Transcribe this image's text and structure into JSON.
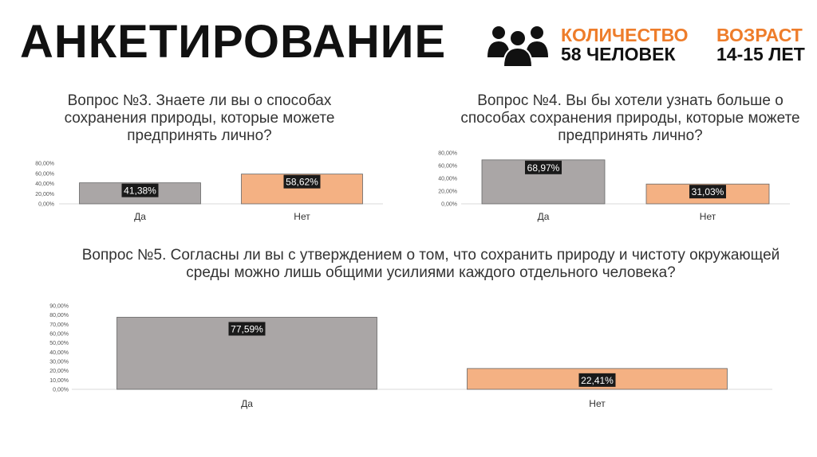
{
  "header": {
    "title": "АНКЕТИРОВАНИЕ",
    "count_label": "КОЛИЧЕСТВО",
    "count_value": "58 ЧЕЛОВЕК",
    "age_label": "ВОЗРАСТ",
    "age_value": "14-15 ЛЕТ",
    "icon": "people-group-icon"
  },
  "questions": [
    {
      "text": "Вопрос №3. Знаете ли вы о способах сохранения природы, которые можете предпринять лично?"
    },
    {
      "text": "Вопрос №4. Вы бы хотели узнать больше о способах сохранения природы, которые можете предпринять лично?"
    },
    {
      "text": "Вопрос №5. Согласны ли вы с утверждением о том, что сохранить природу и чистоту окружающей среды можно лишь общими усилиями каждого отдельного человека?"
    }
  ],
  "chart_data": [
    {
      "type": "bar",
      "categories": [
        "Да",
        "Нет"
      ],
      "values": [
        41.38,
        58.62
      ],
      "data_labels": [
        "41,38%",
        "58,62%"
      ],
      "ylim": [
        0,
        80
      ],
      "yticks": [
        "0,00%",
        "20,00%",
        "40,00%",
        "60,00%",
        "80,00%"
      ],
      "colors": [
        "#aaa6a6",
        "#f4b183"
      ]
    },
    {
      "type": "bar",
      "categories": [
        "Да",
        "Нет"
      ],
      "values": [
        68.97,
        31.03
      ],
      "data_labels": [
        "68,97%",
        "31,03%"
      ],
      "ylim": [
        0,
        80
      ],
      "yticks": [
        "0,00%",
        "20,00%",
        "40,00%",
        "60,00%",
        "80,00%"
      ],
      "colors": [
        "#aaa6a6",
        "#f4b183"
      ]
    },
    {
      "type": "bar",
      "categories": [
        "Да",
        "Нет"
      ],
      "values": [
        77.59,
        22.41
      ],
      "data_labels": [
        "77,59%",
        "22,41%"
      ],
      "ylim": [
        0,
        90
      ],
      "yticks": [
        "0,00%",
        "10,00%",
        "20,00%",
        "30,00%",
        "40,00%",
        "50,00%",
        "60,00%",
        "70,00%",
        "80,00%",
        "90,00%"
      ],
      "colors": [
        "#aaa6a6",
        "#f4b183"
      ]
    }
  ],
  "colors": {
    "accent": "#ee7d2b",
    "bar_yes": "#aaa6a6",
    "bar_no": "#f4b183"
  }
}
